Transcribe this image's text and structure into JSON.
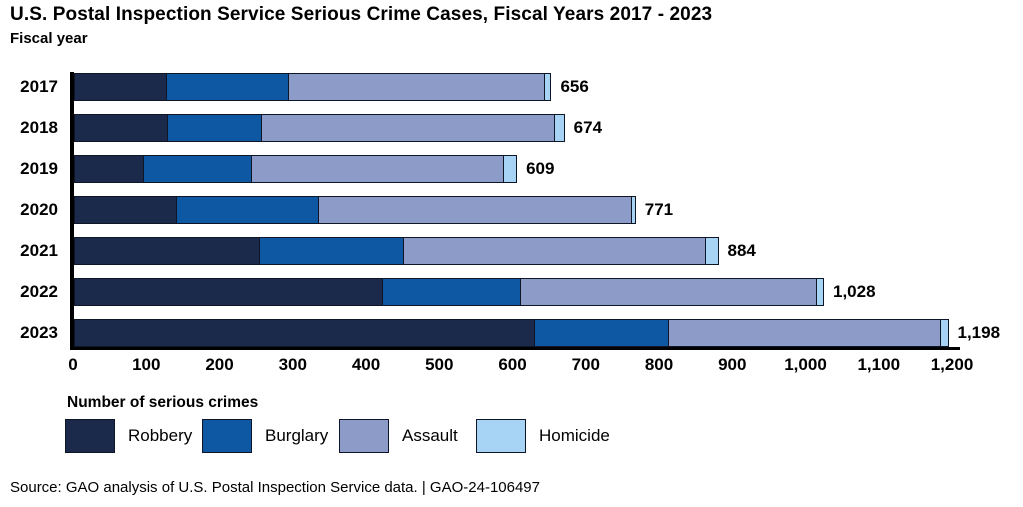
{
  "header": {
    "title": "U.S. Postal Inspection Service Serious Crime Cases, Fiscal Years 2017 - 2023",
    "y_axis_label": "Fiscal year"
  },
  "chart_data": {
    "type": "stacked_bar_horizontal",
    "title": "U.S. Postal Inspection Service Serious Crime Cases, Fiscal Years 2017 - 2023",
    "ylabel": "Fiscal year",
    "legend_title": "Number of serious crimes",
    "legend_position": "bottom",
    "grid": false,
    "xlim": [
      0,
      1200
    ],
    "x_ticks": [
      "0",
      "100",
      "200",
      "300",
      "400",
      "500",
      "600",
      "700",
      "800",
      "900",
      "1,000",
      "1,100",
      "1,200"
    ],
    "categories": [
      "2017",
      "2018",
      "2019",
      "2020",
      "2021",
      "2022",
      "2023"
    ],
    "series": [
      {
        "name": "Robbery",
        "color": "#1b2a4a",
        "values": [
          127,
          128,
          95,
          141,
          254,
          422,
          629
        ]
      },
      {
        "name": "Burglary",
        "color": "#0e58a3",
        "values": [
          168,
          130,
          150,
          195,
          198,
          190,
          185
        ]
      },
      {
        "name": "Assault",
        "color": "#8c9bc7",
        "values": [
          351,
          401,
          345,
          428,
          413,
          405,
          373
        ]
      },
      {
        "name": "Homicide",
        "color": "#a7d4f5",
        "values": [
          10,
          15,
          19,
          7,
          19,
          11,
          11
        ]
      }
    ],
    "totals": [
      656,
      674,
      609,
      771,
      884,
      1028,
      1198
    ],
    "total_labels": [
      "656",
      "674",
      "609",
      "771",
      "884",
      "1,028",
      "1,198"
    ]
  },
  "legend": {
    "title": "Number of serious crimes",
    "items": [
      "Robbery",
      "Burglary",
      "Assault",
      "Homicide"
    ]
  },
  "source": {
    "text": "Source: GAO analysis of U.S. Postal Inspection Service data.  |  GAO-24-106497"
  }
}
